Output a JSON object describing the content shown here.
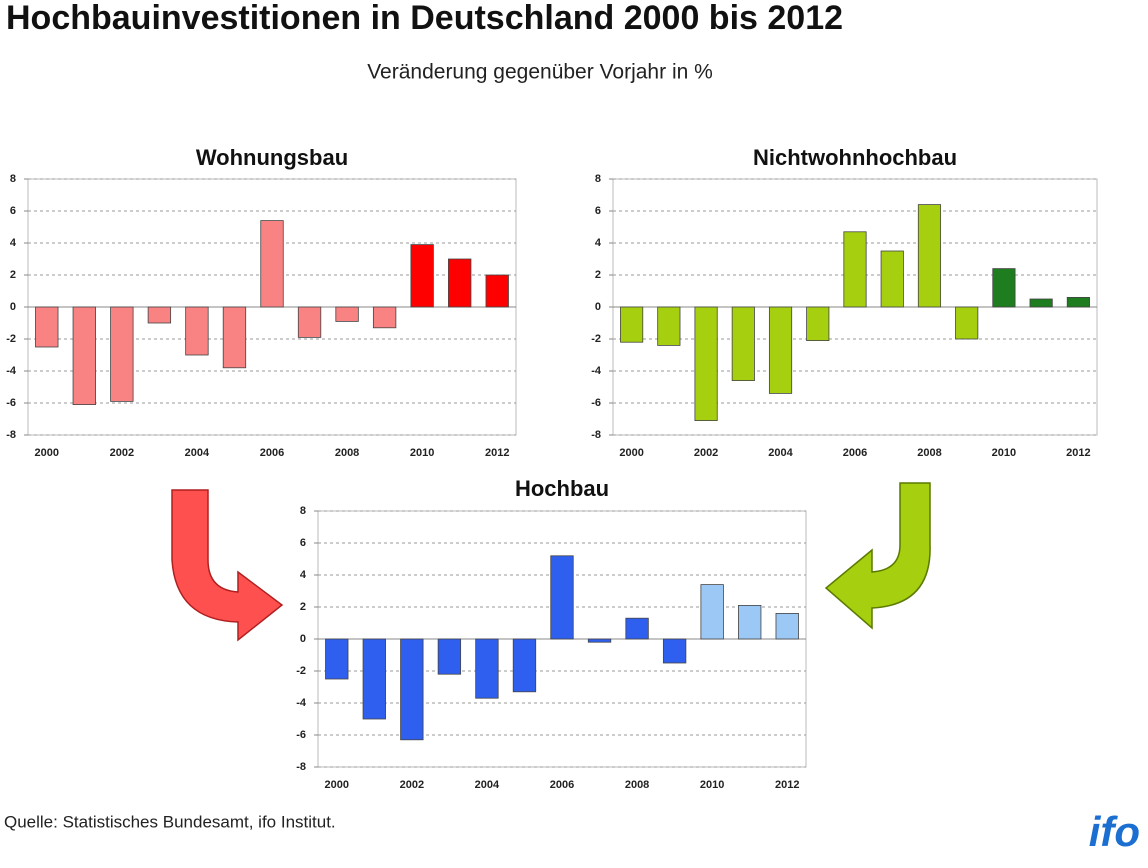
{
  "title": "Hochbauinvestitionen in Deutschland 2000 bis 2012",
  "subtitle": "Veränderung gegenüber Vorjahr in %",
  "source": "Quelle: Statistisches Bundesamt, ifo Institut.",
  "logo": "ifo",
  "chart_data": [
    {
      "type": "bar",
      "title": "Wohnungsbau",
      "categories": [
        "2000",
        null,
        "2002",
        null,
        "2004",
        null,
        "2006",
        null,
        "2008",
        null,
        "2010",
        null,
        "2012"
      ],
      "values": [
        -2.5,
        -6.1,
        -5.9,
        -1.0,
        -3.0,
        -3.8,
        5.4,
        -1.9,
        -0.9,
        -1.3,
        3.9,
        3.0,
        2.0
      ],
      "colors": [
        "#f98383",
        "#f98383",
        "#f98383",
        "#f98383",
        "#f98383",
        "#f98383",
        "#f98383",
        "#f98383",
        "#f98383",
        "#f98383",
        "#ff0000",
        "#ff0000",
        "#ff0000"
      ],
      "ylim": [
        -8,
        8
      ],
      "yticks": [
        -8,
        -6,
        -4,
        -2,
        0,
        2,
        4,
        6,
        8
      ],
      "grid": true
    },
    {
      "type": "bar",
      "title": "Nichtwohnhochbau",
      "categories": [
        "2000",
        null,
        "2002",
        null,
        "2004",
        null,
        "2006",
        null,
        "2008",
        null,
        "2010",
        null,
        "2012"
      ],
      "values": [
        -2.2,
        -2.4,
        -7.1,
        -4.6,
        -5.4,
        -2.1,
        4.7,
        3.5,
        6.4,
        -2.0,
        2.4,
        0.5,
        0.6
      ],
      "colors": [
        "#a6cf10",
        "#a6cf10",
        "#a6cf10",
        "#a6cf10",
        "#a6cf10",
        "#a6cf10",
        "#a6cf10",
        "#a6cf10",
        "#a6cf10",
        "#a6cf10",
        "#1e7d1e",
        "#1e7d1e",
        "#1e7d1e"
      ],
      "ylim": [
        -8,
        8
      ],
      "yticks": [
        -8,
        -6,
        -4,
        -2,
        0,
        2,
        4,
        6,
        8
      ],
      "grid": true
    },
    {
      "type": "bar",
      "title": "Hochbau",
      "categories": [
        "2000",
        null,
        "2002",
        null,
        "2004",
        null,
        "2006",
        null,
        "2008",
        null,
        "2010",
        null,
        "2012"
      ],
      "values": [
        -2.5,
        -5.0,
        -6.3,
        -2.2,
        -3.7,
        -3.3,
        5.2,
        -0.2,
        1.3,
        -1.5,
        3.4,
        2.1,
        1.6
      ],
      "colors": [
        "#2f5fee",
        "#2f5fee",
        "#2f5fee",
        "#2f5fee",
        "#2f5fee",
        "#2f5fee",
        "#2f5fee",
        "#2f5fee",
        "#2f5fee",
        "#2f5fee",
        "#9cc8f5",
        "#9cc8f5",
        "#9cc8f5"
      ],
      "ylim": [
        -8,
        8
      ],
      "yticks": [
        -8,
        -6,
        -4,
        -2,
        0,
        2,
        4,
        6,
        8
      ],
      "grid": true
    }
  ]
}
